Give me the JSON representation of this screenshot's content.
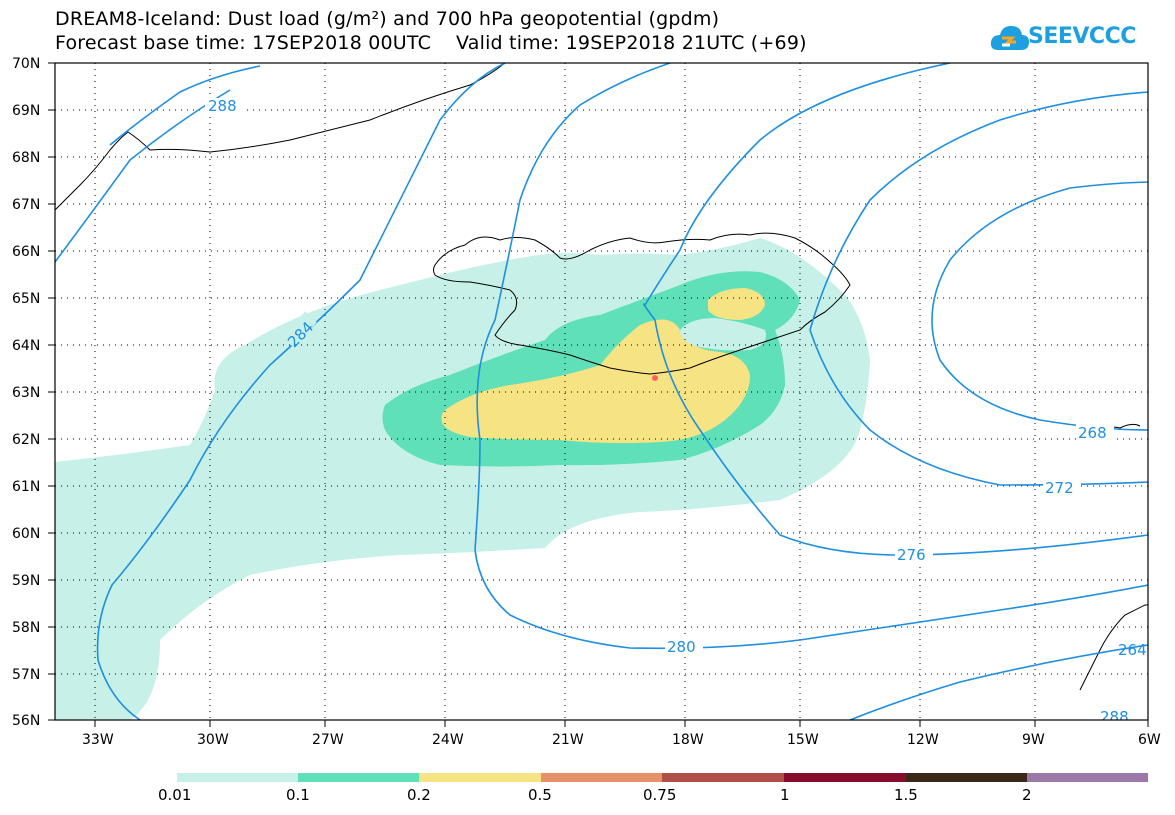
{
  "header": {
    "title_line1": "DREAM8-Iceland: Dust load (g/m²) and 700 hPa geopotential (gpdm)",
    "title_line2": "Forecast base time: 17SEP2018 00UTC    Valid time: 19SEP2018 21UTC (+69)",
    "logo_text": "SEEVCCC",
    "logo_icon": "cloud-icon",
    "logo_color": "#1e9fe0"
  },
  "map": {
    "lat_labels": [
      "70N",
      "69N",
      "68N",
      "67N",
      "66N",
      "65N",
      "64N",
      "63N",
      "62N",
      "61N",
      "60N",
      "59N",
      "58N",
      "57N",
      "56N"
    ],
    "lon_labels": [
      "33W",
      "30W",
      "27W",
      "24W",
      "21W",
      "18W",
      "15W",
      "12W",
      "9W",
      "6W"
    ],
    "contour_labels": [
      "288",
      "284",
      "280",
      "276",
      "272",
      "268",
      "264",
      "288"
    ],
    "contour_color": "#1f8fe0",
    "dust_colors": {
      "level_0_01": "#c6f0e8",
      "level_0_1": "#5fe0b8",
      "level_0_2": "#f6e384"
    },
    "source_marker_color": "#ff6060"
  },
  "legend": {
    "labels": [
      "0.01",
      "0.1",
      "0.2",
      "0.5",
      "0.75",
      "1",
      "1.5",
      "2"
    ],
    "colors": [
      "#c6f0e8",
      "#5fe0b8",
      "#f6e384",
      "#e89068",
      "#b04e48",
      "#880c2c",
      "#3c2818",
      "#9a78a8"
    ]
  }
}
